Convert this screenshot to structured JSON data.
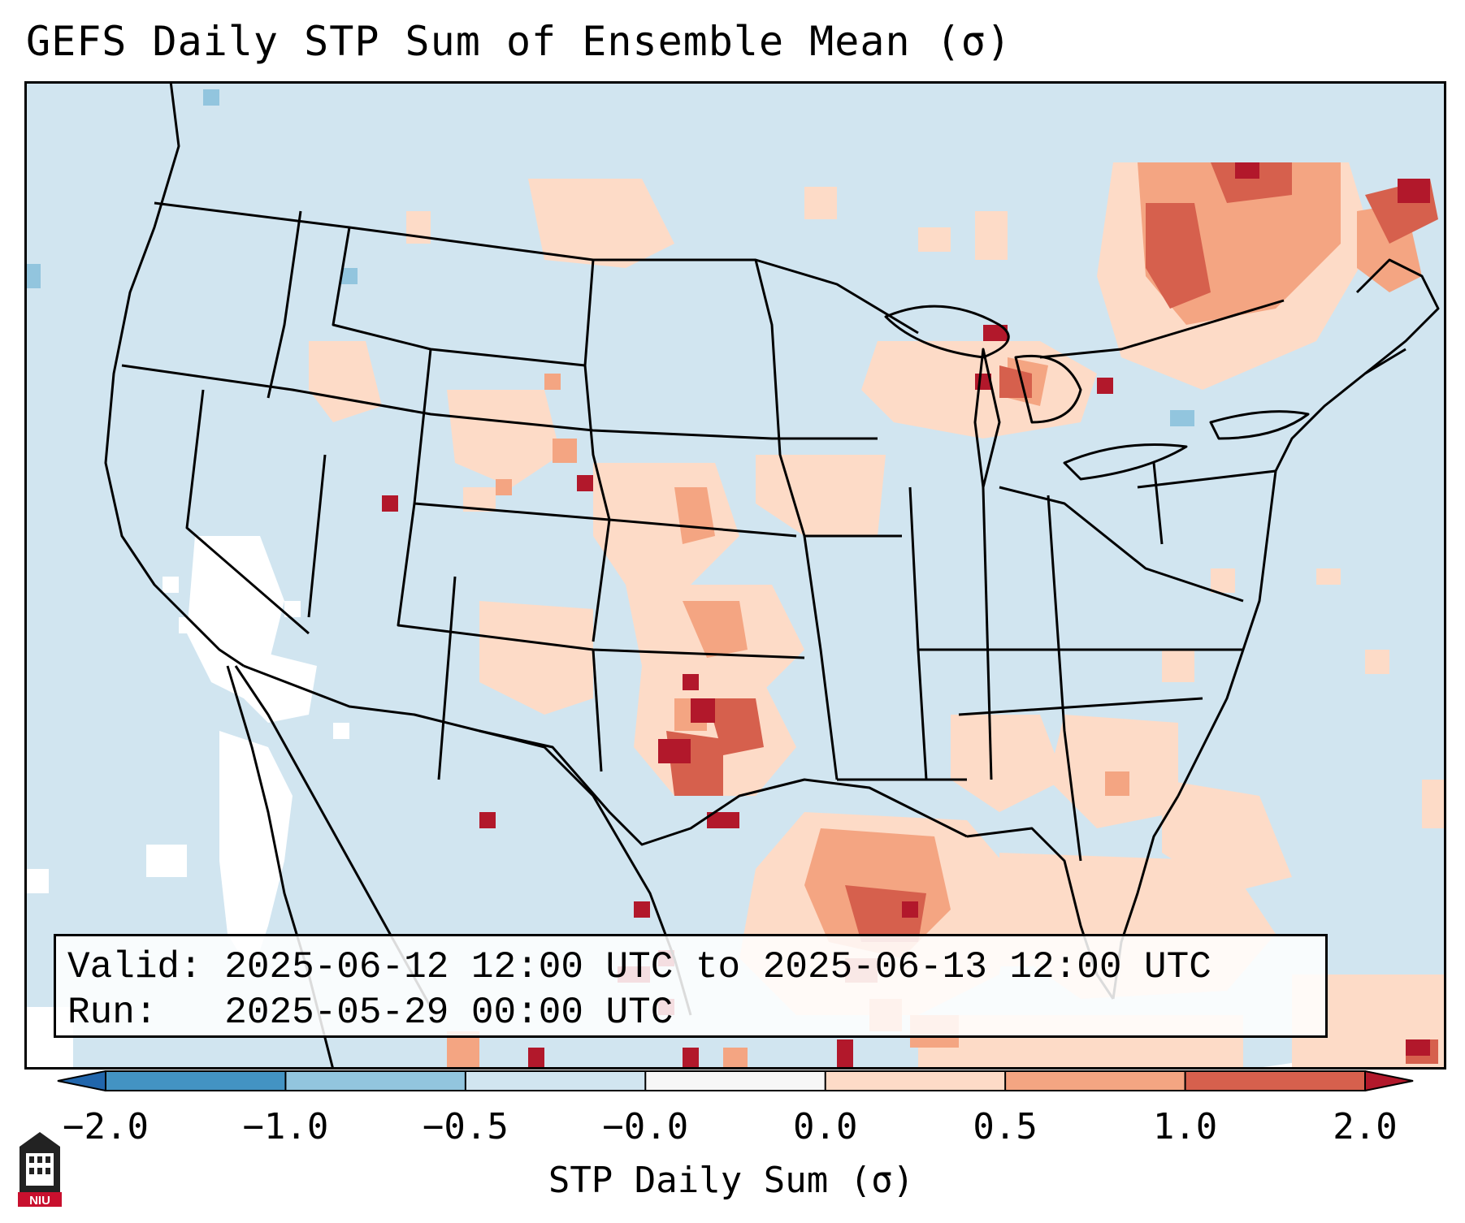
{
  "title": "GEFS Daily STP Sum of Ensemble Mean (σ)",
  "info": {
    "valid_label": "Valid:",
    "valid_value": "2025-06-12 12:00 UTC to 2025-06-13 12:00 UTC",
    "run_label": "Run:",
    "run_value": "2025-05-29 00:00 UTC"
  },
  "colorbar": {
    "label": "STP Daily Sum (σ)",
    "ticks": [
      "−2.0",
      "−1.0",
      "−0.5",
      "−0.0",
      "0.0",
      "0.5",
      "1.0",
      "2.0"
    ],
    "colors": [
      "#2166ac",
      "#4393c3",
      "#92c5de",
      "#d1e5f0",
      "#f7f7f7",
      "#fddbc7",
      "#f4a582",
      "#d6604d",
      "#b2182b"
    ]
  },
  "map": {
    "background_color": "#d1e5f0",
    "legend_colors": {
      "positive_low": "#fddbc7",
      "positive_mid": "#f4a582",
      "positive_high": "#d6604d",
      "positive_extreme": "#b2182b",
      "negative_low": "#92c5de",
      "near_zero": "#ffffff"
    }
  },
  "logo": {
    "text": "NIU",
    "color": "#c8102e"
  }
}
